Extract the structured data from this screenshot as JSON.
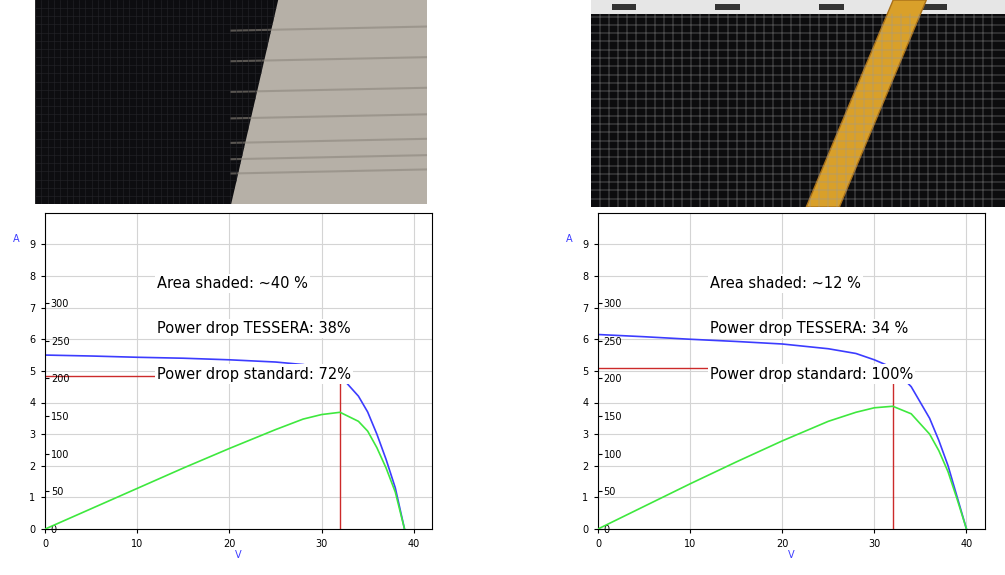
{
  "chart_data": [
    {
      "type": "line",
      "x_label": "V",
      "y_label": "A",
      "x": [
        0,
        5,
        10,
        15,
        20,
        25,
        28,
        30,
        32,
        34,
        35,
        36,
        37,
        38,
        39
      ],
      "series": [
        {
          "color": "#3c3cff",
          "values": [
            5.5,
            5.47,
            5.43,
            5.4,
            5.35,
            5.28,
            5.2,
            5.08,
            4.85,
            4.2,
            3.7,
            3.0,
            2.2,
            1.3,
            0.0
          ]
        },
        {
          "color": "#3ee83e",
          "axis": "y2",
          "values": [
            0,
            27,
            54,
            81,
            107,
            132,
            146,
            152,
            155,
            143,
            130,
            108,
            81,
            49,
            0
          ]
        }
      ],
      "max_power_point": {
        "x": 32,
        "y": 4.85,
        "color": "#cc2a2a"
      },
      "xlim": [
        0,
        42
      ],
      "xticks": [
        0,
        10,
        20,
        30,
        40
      ],
      "ylim": [
        0,
        10
      ],
      "yticks": [
        0,
        1,
        2,
        3,
        4,
        5,
        6,
        7,
        8,
        9
      ],
      "y2lim": [
        0,
        420
      ],
      "y2ticks": [
        0,
        50,
        100,
        150,
        200,
        250,
        300
      ],
      "grid": true,
      "annotations": [
        "Area shaded: ~40 %",
        "Power drop TESSERA: 38%",
        "Power drop standard: 72%"
      ]
    },
    {
      "type": "line",
      "x_label": "V",
      "y_label": "A",
      "x": [
        0,
        5,
        10,
        15,
        20,
        25,
        28,
        30,
        32,
        34,
        36,
        37,
        38,
        39,
        40
      ],
      "series": [
        {
          "color": "#3c3cff",
          "values": [
            6.15,
            6.08,
            6.0,
            5.93,
            5.85,
            5.7,
            5.55,
            5.35,
            5.1,
            4.5,
            3.5,
            2.8,
            2.0,
            1.0,
            0.0
          ]
        },
        {
          "color": "#3ee83e",
          "axis": "y2",
          "values": [
            0,
            30,
            60,
            89,
            117,
            143,
            155,
            161,
            163,
            153,
            126,
            104,
            76,
            39,
            0
          ]
        }
      ],
      "max_power_point": {
        "x": 32,
        "y": 5.1,
        "color": "#cc2a2a"
      },
      "xlim": [
        0,
        42
      ],
      "xticks": [
        0,
        10,
        20,
        30,
        40
      ],
      "ylim": [
        0,
        10
      ],
      "yticks": [
        0,
        1,
        2,
        3,
        4,
        5,
        6,
        7,
        8,
        9
      ],
      "y2lim": [
        0,
        420
      ],
      "y2ticks": [
        0,
        50,
        100,
        150,
        200,
        250,
        300
      ],
      "grid": true,
      "annotations": [
        "Area shaded: ~12 %",
        "Power drop TESSERA: 34 %",
        "Power drop standard: 100%"
      ]
    }
  ]
}
